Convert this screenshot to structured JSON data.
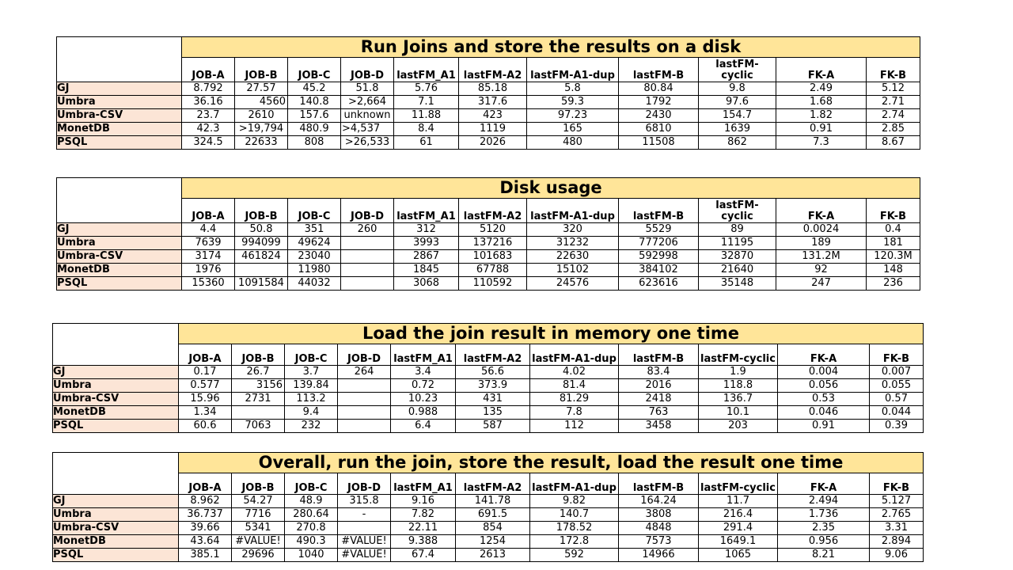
{
  "tables": [
    {
      "title": "Run Joins and store the results on a disk",
      "columns": [
        "JOB-A",
        "JOB-B",
        "JOB-C",
        "JOB-D",
        "lastFM_A1",
        "lastFM-A2",
        "lastFM-A1-dup",
        "lastFM-B",
        "lastFM-\ncyclic",
        "FK-A",
        "FK-B"
      ],
      "rows": [
        {
          "label": "GJ",
          "values": [
            "8.792",
            "27.57",
            "45.2",
            "51.8",
            "5.76",
            "85.18",
            "5.8",
            "80.84",
            "9.8",
            "2.49",
            "5.12"
          ]
        },
        {
          "label": "Umbra",
          "values": [
            "36.16",
            "4560",
            "140.8",
            ">2,664",
            "7.1",
            "317.6",
            "59.3",
            "1792",
            "97.6",
            "1.68",
            "2.71"
          ]
        },
        {
          "label": "Umbra-CSV",
          "values": [
            "23.7",
            "2610",
            "157.6",
            "unknown",
            "11.88",
            "423",
            "97.23",
            "2430",
            "154.7",
            "1.82",
            "2.74"
          ]
        },
        {
          "label": "MonetDB",
          "values": [
            "42.3",
            ">19,794",
            "480.9",
            ">4,537",
            "8.4",
            "1119",
            "165",
            "6810",
            "1639",
            "0.91",
            "2.85"
          ]
        },
        {
          "label": "PSQL",
          "values": [
            "324.5",
            "22633",
            "808",
            ">26,533",
            "61",
            "2026",
            "480",
            "11508",
            "862",
            "7.3",
            "8.67"
          ]
        }
      ]
    },
    {
      "title": "Disk usage",
      "columns": [
        "JOB-A",
        "JOB-B",
        "JOB-C",
        "JOB-D",
        "lastFM_A1",
        "lastFM-A2",
        "lastFM-A1-dup",
        "lastFM-B",
        "lastFM-\ncyclic",
        "FK-A",
        "FK-B"
      ],
      "rows": [
        {
          "label": "GJ",
          "values": [
            "4.4",
            "50.8",
            "351",
            "260",
            "312",
            "5120",
            "320",
            "5529",
            "89",
            "0.0024",
            "0.4"
          ]
        },
        {
          "label": "Umbra",
          "values": [
            "7639",
            "994099",
            "49624",
            "",
            "3993",
            "137216",
            "31232",
            "777206",
            "11195",
            "189",
            "181"
          ]
        },
        {
          "label": "Umbra-CSV",
          "values": [
            "3174",
            "461824",
            "23040",
            "",
            "2867",
            "101683",
            "22630",
            "592998",
            "32870",
            "131.2M",
            "120.3M"
          ]
        },
        {
          "label": "MonetDB",
          "values": [
            "1976",
            "",
            "11980",
            "",
            "1845",
            "67788",
            "15102",
            "384102",
            "21640",
            "92",
            "148"
          ]
        },
        {
          "label": "PSQL",
          "values": [
            "15360",
            "1091584",
            "44032",
            "",
            "3068",
            "110592",
            "24576",
            "623616",
            "35148",
            "247",
            "236"
          ]
        }
      ]
    },
    {
      "title": "Load the join result in memory one time",
      "columns": [
        "JOB-A",
        "JOB-B",
        "JOB-C",
        "JOB-D",
        "lastFM_A1",
        "lastFM-A2",
        "lastFM-A1-dup",
        "lastFM-B",
        "lastFM-cyclic",
        "FK-A",
        "FK-B"
      ],
      "rows": [
        {
          "label": "GJ",
          "values": [
            "0.17",
            "26.7",
            "3.7",
            "264",
            "3.4",
            "56.6",
            "4.02",
            "83.4",
            "1.9",
            "0.004",
            "0.007"
          ]
        },
        {
          "label": "Umbra",
          "values": [
            "0.577",
            "3156",
            "139.84",
            "",
            "0.72",
            "373.9",
            "81.4",
            "2016",
            "118.8",
            "0.056",
            "0.055"
          ]
        },
        {
          "label": "Umbra-CSV",
          "values": [
            "15.96",
            "2731",
            "113.2",
            "",
            "10.23",
            "431",
            "81.29",
            "2418",
            "136.7",
            "0.53",
            "0.57"
          ]
        },
        {
          "label": "MonetDB",
          "values": [
            "1.34",
            "",
            "9.4",
            "",
            "0.988",
            "135",
            "7.8",
            "763",
            "10.1",
            "0.046",
            "0.044"
          ]
        },
        {
          "label": "PSQL",
          "values": [
            "60.6",
            "7063",
            "232",
            "",
            "6.4",
            "587",
            "112",
            "3458",
            "203",
            "0.91",
            "0.39"
          ]
        }
      ]
    },
    {
      "title": "Overall, run the join, store the result, load the result one time",
      "columns": [
        "JOB-A",
        "JOB-B",
        "JOB-C",
        "JOB-D",
        "lastFM_A1",
        "lastFM-A2",
        "lastFM-A1-dup",
        "lastFM-B",
        "lastFM-cyclic",
        "FK-A",
        "FK-B"
      ],
      "rows": [
        {
          "label": "GJ",
          "values": [
            "8.962",
            "54.27",
            "48.9",
            "315.8",
            "9.16",
            "141.78",
            "9.82",
            "164.24",
            "11.7",
            "2.494",
            "5.127"
          ]
        },
        {
          "label": "Umbra",
          "values": [
            "36.737",
            "7716",
            "280.64",
            "-",
            "7.82",
            "691.5",
            "140.7",
            "3808",
            "216.4",
            "1.736",
            "2.765"
          ]
        },
        {
          "label": "Umbra-CSV",
          "values": [
            "39.66",
            "5341",
            "270.8",
            "",
            "22.11",
            "854",
            "178.52",
            "4848",
            "291.4",
            "2.35",
            "3.31"
          ]
        },
        {
          "label": "MonetDB",
          "values": [
            "43.64",
            "#VALUE!",
            "490.3",
            "#VALUE!",
            "9.388",
            "1254",
            "172.8",
            "7573",
            "1649.1",
            "0.956",
            "2.894"
          ]
        },
        {
          "label": "PSQL",
          "values": [
            "385.1",
            "29696",
            "1040",
            "#VALUE!",
            "67.4",
            "2613",
            "592",
            "14966",
            "1065",
            "8.21",
            "9.06"
          ]
        }
      ]
    }
  ]
}
